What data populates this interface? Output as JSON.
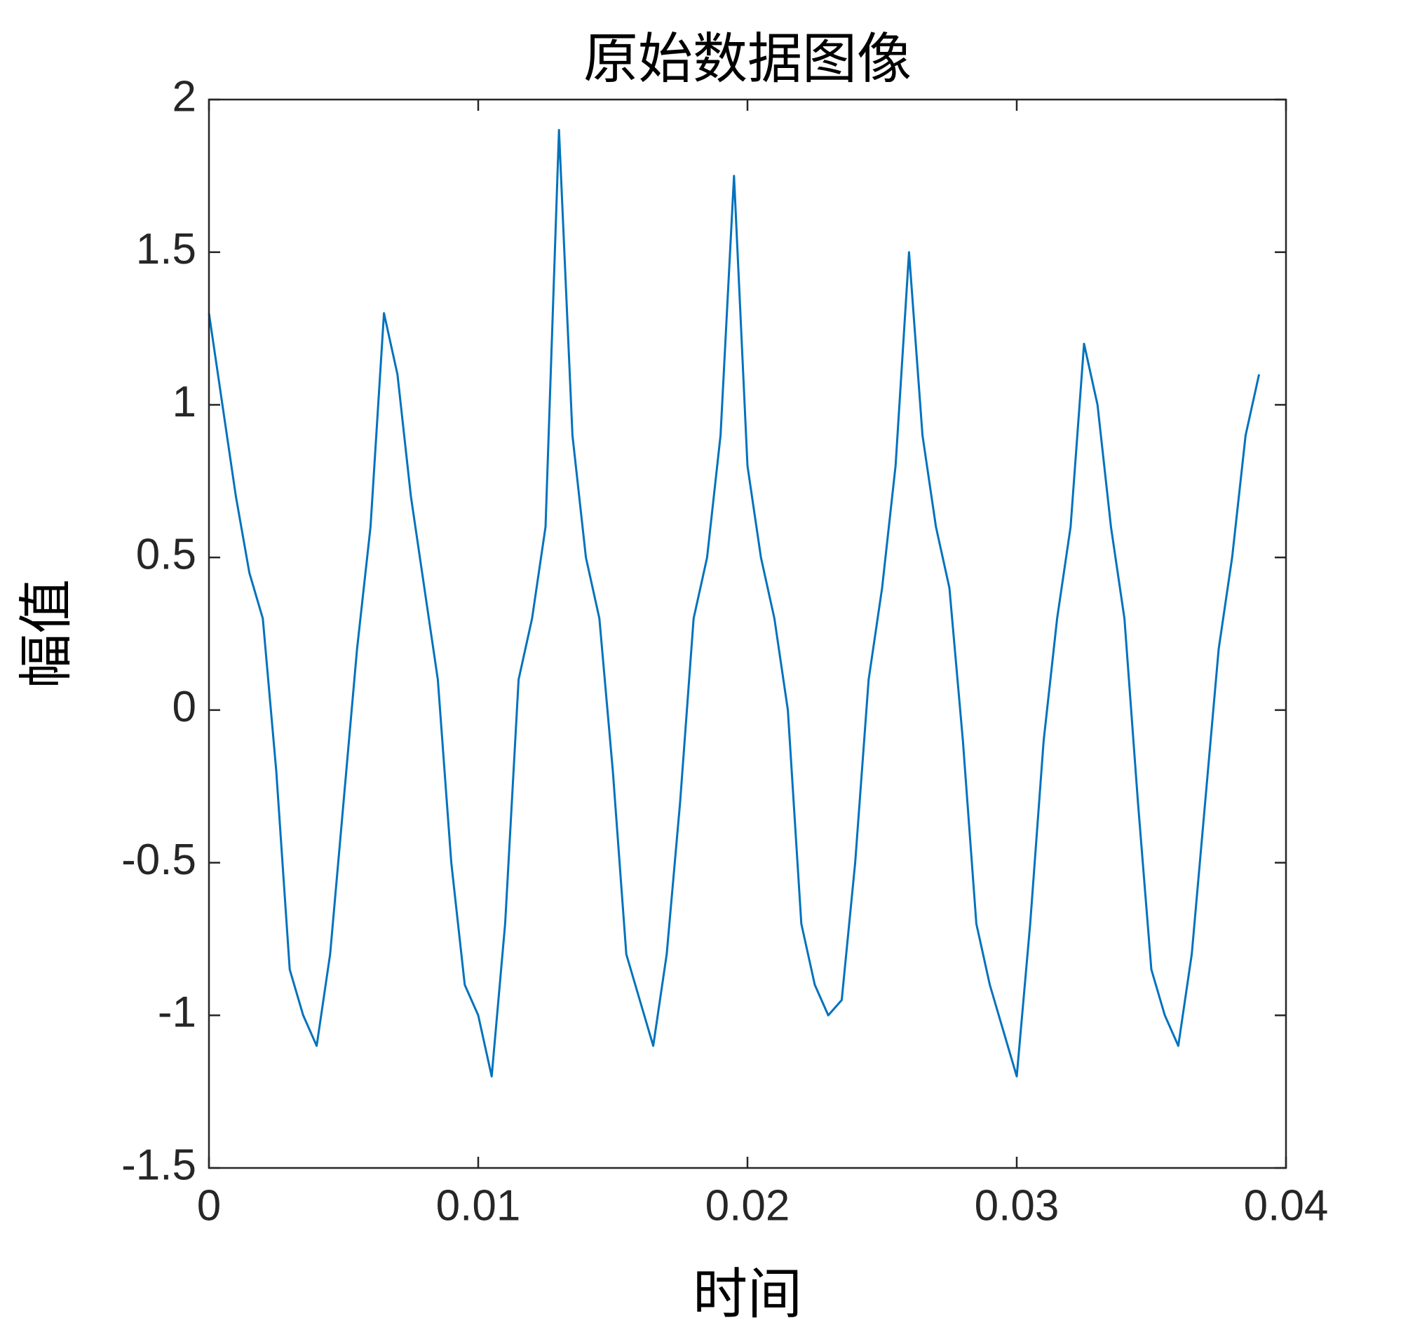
{
  "chart_data": {
    "type": "line",
    "title": "原始数据图像",
    "x_label": "时间",
    "y_label": "幅值",
    "x": [
      0,
      0.0005,
      0.001,
      0.0015,
      0.002,
      0.0025,
      0.003,
      0.0035,
      0.004,
      0.0045,
      0.005,
      0.0055,
      0.006,
      0.0065,
      0.007,
      0.0075,
      0.008,
      0.0085,
      0.009,
      0.0095,
      0.01,
      0.0105,
      0.011,
      0.0115,
      0.012,
      0.0125,
      0.013,
      0.0135,
      0.014,
      0.0145,
      0.015,
      0.0155,
      0.016,
      0.0165,
      0.017,
      0.0175,
      0.018,
      0.0185,
      0.019,
      0.0195,
      0.02,
      0.0205,
      0.021,
      0.0215,
      0.022,
      0.0225,
      0.023,
      0.0235,
      0.024,
      0.0245,
      0.025,
      0.0255,
      0.026,
      0.0265,
      0.027,
      0.0275,
      0.028,
      0.0285,
      0.029,
      0.0295,
      0.03,
      0.0305,
      0.031,
      0.0315,
      0.032,
      0.0325,
      0.033,
      0.0335,
      0.034,
      0.0345,
      0.035,
      0.0355,
      0.036,
      0.0365,
      0.037,
      0.0375,
      0.038,
      0.0385,
      0.039
    ],
    "values": [
      1.3,
      1.0,
      0.7,
      0.45,
      0.3,
      -0.2,
      -0.85,
      -1.0,
      -1.1,
      -0.8,
      -0.3,
      0.2,
      0.6,
      1.3,
      1.1,
      0.7,
      0.4,
      0.1,
      -0.5,
      -0.9,
      -1.0,
      -1.2,
      -0.7,
      0.1,
      0.3,
      0.6,
      1.9,
      0.9,
      0.5,
      0.3,
      -0.2,
      -0.8,
      -0.95,
      -1.1,
      -0.8,
      -0.3,
      0.3,
      0.5,
      0.9,
      1.75,
      0.8,
      0.5,
      0.3,
      0.0,
      -0.7,
      -0.9,
      -1.0,
      -0.95,
      -0.5,
      0.1,
      0.4,
      0.8,
      1.5,
      0.9,
      0.6,
      0.4,
      -0.1,
      -0.7,
      -0.9,
      -1.05,
      -1.2,
      -0.7,
      -0.1,
      0.3,
      0.6,
      1.2,
      1.0,
      0.6,
      0.3,
      -0.3,
      -0.85,
      -1.0,
      -1.1,
      -0.8,
      -0.3,
      0.2,
      0.5,
      0.9,
      1.1
    ],
    "color": "#0072bd",
    "xlim": [
      0,
      0.04
    ],
    "xticks": [
      0,
      0.01,
      0.02,
      0.03,
      0.04
    ],
    "ylim": [
      -1.5,
      2
    ],
    "yticks": [
      -1.5,
      -1,
      -0.5,
      0,
      0.5,
      1,
      1.5,
      2
    ]
  }
}
